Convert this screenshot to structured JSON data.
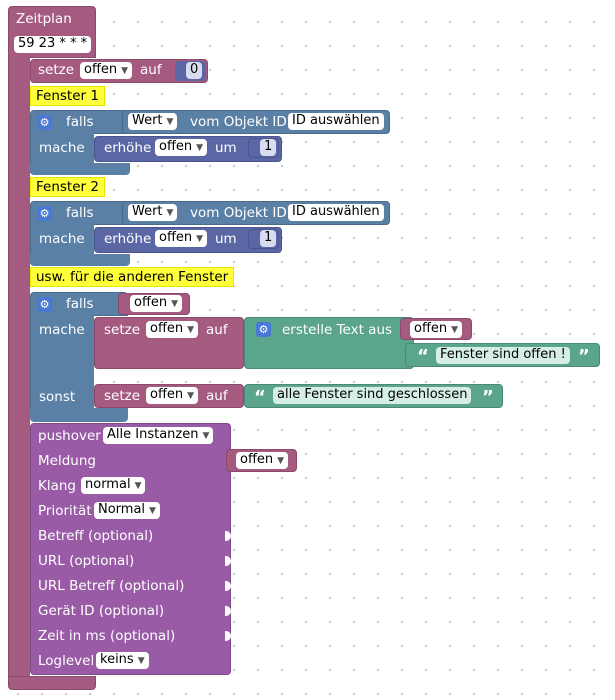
{
  "colors": {
    "timer": "#a55b80",
    "variables": "#a55b80",
    "logic": "#5b80a5",
    "math": "#5b67a5",
    "text": "#5ba58c",
    "pushover": "#995ba5",
    "comment": "#ffff3a",
    "setting_icon": "#4a78d5"
  },
  "icons": {
    "setting": "gear-icon",
    "dropdown": "triangle-down-icon",
    "quote_open": "“",
    "quote_close": "”"
  },
  "schedule": {
    "title": "Zeitplan",
    "cron": "59 23 * * *"
  },
  "set_counter": {
    "set": "setze",
    "variable": "offen",
    "to": "auf",
    "value": "0"
  },
  "windows": [
    {
      "comment": "Fenster 1",
      "if": "falls",
      "value_dropdown": "Wert",
      "object_text": "vom Objekt ID",
      "object_id": "ID auswählen",
      "do": "mache",
      "increment": "erhöhe",
      "variable": "offen",
      "by": "um",
      "amount": "1"
    },
    {
      "comment": "Fenster 2",
      "if": "falls",
      "value_dropdown": "Wert",
      "object_text": "vom Objekt ID",
      "object_id": "ID auswählen",
      "do": "mache",
      "increment": "erhöhe",
      "variable": "offen",
      "by": "um",
      "amount": "1"
    }
  ],
  "other_comment": "usw. für die anderen Fenster",
  "final_if": {
    "if": "falls",
    "condition_var": "offen",
    "do": "mache",
    "set": "setze",
    "variable": "offen",
    "to": "auf",
    "create_text": "erstelle Text aus",
    "text_var": "offen",
    "text_literal": "Fenster sind offen !",
    "else": "sonst",
    "else_set": "setze",
    "else_variable": "offen",
    "else_to": "auf",
    "else_literal": "alle Fenster sind geschlossen"
  },
  "pushover": {
    "label": "pushover",
    "instance": "Alle Instanzen",
    "message": "Meldung",
    "message_var": "offen",
    "sound": "Klang",
    "sound_value": "normal",
    "priority": "Priorität",
    "priority_value": "Normal",
    "subject": "Betreff (optional)",
    "url": "URL (optional)",
    "url_subject": "URL Betreff (optional)",
    "device": "Gerät ID (optional)",
    "time": "Zeit in ms (optional)",
    "loglevel": "Loglevel",
    "loglevel_value": "keins"
  }
}
